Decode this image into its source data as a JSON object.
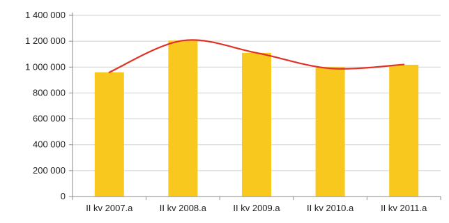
{
  "chart_data": {
    "type": "bar",
    "categories": [
      "II kv 2007.a",
      "II kv 2008.a",
      "II kv 2009.a",
      "II kv 2010.a",
      "II kv 2011.a"
    ],
    "values": [
      960000,
      1205000,
      1110000,
      1000000,
      1018000
    ],
    "trendline": {
      "type": "polynomial",
      "values": [
        960000,
        1205000,
        1110000,
        990000,
        1020000
      ]
    },
    "yticks": [
      "0",
      "200 000",
      "400 000",
      "600 000",
      "800 000",
      "1 000 000",
      "1 200 000",
      "1 400 000"
    ],
    "ylim": [
      0,
      1400000
    ],
    "ystep": 200000,
    "grid": true,
    "title": "",
    "xlabel": "",
    "ylabel": "",
    "colors": {
      "bar": "#f9c81e",
      "trendline": "#e03226",
      "grid": "#d0d0d0",
      "axis": "#8a8a8a"
    }
  }
}
